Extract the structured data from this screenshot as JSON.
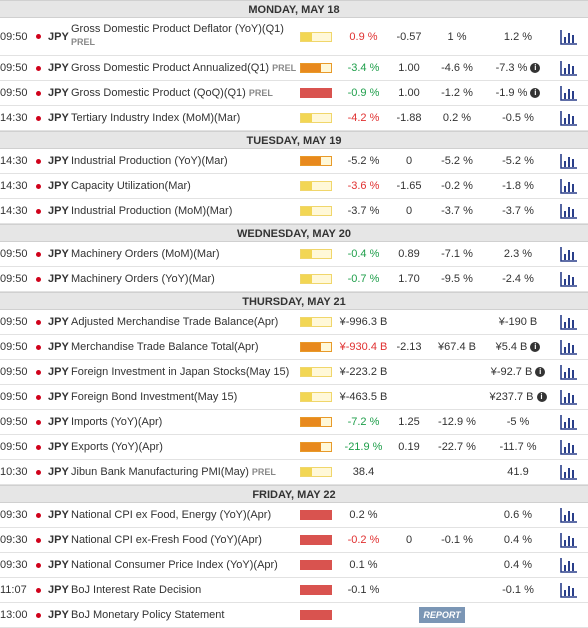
{
  "colors": {
    "impact_low": "#f2d654",
    "impact_medium": "#e8891d",
    "impact_high": "#d9534f",
    "actual_up": "#1e9e4a",
    "actual_down": "#e03030",
    "report_button": "#7b96b5"
  },
  "icons": {
    "flag": "japan-flag-icon",
    "chart": "bar-chart-icon",
    "info": "info-icon"
  },
  "days": [
    {
      "label": "MONDAY, MAY 18",
      "events": [
        {
          "time": "09:50",
          "currency": "JPY",
          "name": "Gross Domestic Product Deflator (YoY)(Q1)",
          "prel": "PREL",
          "two_line": true,
          "impact": "low",
          "actual": "0.9 %",
          "actual_dir": "down",
          "deviation": "-0.57",
          "consensus": "1 %",
          "previous": "1.2 %",
          "previous_info": false
        },
        {
          "time": "09:50",
          "currency": "JPY",
          "name": "Gross Domestic Product Annualized(Q1)",
          "prel": "PREL",
          "impact": "med",
          "actual": "-3.4 %",
          "actual_dir": "up",
          "deviation": "1.00",
          "consensus": "-4.6 %",
          "previous": "-7.3 %",
          "previous_info": true
        },
        {
          "time": "09:50",
          "currency": "JPY",
          "name": "Gross Domestic Product (QoQ)(Q1)",
          "prel": "PREL",
          "impact": "high",
          "actual": "-0.9 %",
          "actual_dir": "up",
          "deviation": "1.00",
          "consensus": "-1.2 %",
          "previous": "-1.9 %",
          "previous_info": true
        },
        {
          "time": "14:30",
          "currency": "JPY",
          "name": "Tertiary Industry Index (MoM)(Mar)",
          "prel": "",
          "impact": "low",
          "actual": "-4.2 %",
          "actual_dir": "down",
          "deviation": "-1.88",
          "consensus": "0.2 %",
          "previous": "-0.5 %",
          "previous_info": false
        }
      ]
    },
    {
      "label": "TUESDAY, MAY 19",
      "events": [
        {
          "time": "14:30",
          "currency": "JPY",
          "name": "Industrial Production (YoY)(Mar)",
          "prel": "",
          "impact": "med",
          "actual": "-5.2 %",
          "actual_dir": "neu",
          "deviation": "0",
          "consensus": "-5.2 %",
          "previous": "-5.2 %",
          "previous_info": false
        },
        {
          "time": "14:30",
          "currency": "JPY",
          "name": "Capacity Utilization(Mar)",
          "prel": "",
          "impact": "low",
          "actual": "-3.6 %",
          "actual_dir": "down",
          "deviation": "-1.65",
          "consensus": "-0.2 %",
          "previous": "-1.8 %",
          "previous_info": false
        },
        {
          "time": "14:30",
          "currency": "JPY",
          "name": "Industrial Production (MoM)(Mar)",
          "prel": "",
          "impact": "low",
          "actual": "-3.7 %",
          "actual_dir": "neu",
          "deviation": "0",
          "consensus": "-3.7 %",
          "previous": "-3.7 %",
          "previous_info": false
        }
      ]
    },
    {
      "label": "WEDNESDAY, MAY 20",
      "events": [
        {
          "time": "09:50",
          "currency": "JPY",
          "name": "Machinery Orders (MoM)(Mar)",
          "prel": "",
          "impact": "low",
          "actual": "-0.4 %",
          "actual_dir": "up",
          "deviation": "0.89",
          "consensus": "-7.1 %",
          "previous": "2.3 %",
          "previous_info": false
        },
        {
          "time": "09:50",
          "currency": "JPY",
          "name": "Machinery Orders (YoY)(Mar)",
          "prel": "",
          "impact": "low",
          "actual": "-0.7 %",
          "actual_dir": "up",
          "deviation": "1.70",
          "consensus": "-9.5 %",
          "previous": "-2.4 %",
          "previous_info": false
        }
      ]
    },
    {
      "label": "THURSDAY, MAY 21",
      "events": [
        {
          "time": "09:50",
          "currency": "JPY",
          "name": "Adjusted Merchandise Trade Balance(Apr)",
          "prel": "",
          "impact": "low",
          "actual": "¥-996.3 B",
          "actual_dir": "neu",
          "deviation": "",
          "consensus": "",
          "previous": "¥-190 B",
          "previous_info": false
        },
        {
          "time": "09:50",
          "currency": "JPY",
          "name": "Merchandise Trade Balance Total(Apr)",
          "prel": "",
          "impact": "med",
          "actual": "¥-930.4 B",
          "actual_dir": "down",
          "deviation": "-2.13",
          "consensus": "¥67.4 B",
          "previous": "¥5.4 B",
          "previous_info": true
        },
        {
          "time": "09:50",
          "currency": "JPY",
          "name": "Foreign Investment in Japan Stocks(May 15)",
          "prel": "",
          "impact": "low",
          "actual": "¥-223.2 B",
          "actual_dir": "neu",
          "deviation": "",
          "consensus": "",
          "previous": "¥-92.7 B",
          "previous_info": true
        },
        {
          "time": "09:50",
          "currency": "JPY",
          "name": "Foreign Bond Investment(May 15)",
          "prel": "",
          "impact": "low",
          "actual": "¥-463.5 B",
          "actual_dir": "neu",
          "deviation": "",
          "consensus": "",
          "previous": "¥237.7 B",
          "previous_info": true
        },
        {
          "time": "09:50",
          "currency": "JPY",
          "name": "Imports (YoY)(Apr)",
          "prel": "",
          "impact": "med",
          "actual": "-7.2 %",
          "actual_dir": "up",
          "deviation": "1.25",
          "consensus": "-12.9 %",
          "previous": "-5 %",
          "previous_info": false
        },
        {
          "time": "09:50",
          "currency": "JPY",
          "name": "Exports (YoY)(Apr)",
          "prel": "",
          "impact": "med",
          "actual": "-21.9 %",
          "actual_dir": "up",
          "deviation": "0.19",
          "consensus": "-22.7 %",
          "previous": "-11.7 %",
          "previous_info": false
        },
        {
          "time": "10:30",
          "currency": "JPY",
          "name": "Jibun Bank Manufacturing PMI(May)",
          "prel": "PREL",
          "impact": "low",
          "actual": "38.4",
          "actual_dir": "neu",
          "deviation": "",
          "consensus": "",
          "previous": "41.9",
          "previous_info": false
        }
      ]
    },
    {
      "label": "FRIDAY, MAY 22",
      "events": [
        {
          "time": "09:30",
          "currency": "JPY",
          "name": "National CPI ex Food, Energy (YoY)(Apr)",
          "prel": "",
          "impact": "high",
          "actual": "0.2 %",
          "actual_dir": "neu",
          "deviation": "",
          "consensus": "",
          "previous": "0.6 %",
          "previous_info": false
        },
        {
          "time": "09:30",
          "currency": "JPY",
          "name": "National CPI ex-Fresh Food (YoY)(Apr)",
          "prel": "",
          "impact": "high",
          "actual": "-0.2 %",
          "actual_dir": "down",
          "deviation": "0",
          "consensus": "-0.1 %",
          "previous": "0.4 %",
          "previous_info": false
        },
        {
          "time": "09:30",
          "currency": "JPY",
          "name": "National Consumer Price Index (YoY)(Apr)",
          "prel": "",
          "impact": "high",
          "actual": "0.1 %",
          "actual_dir": "neu",
          "deviation": "",
          "consensus": "",
          "previous": "0.4 %",
          "previous_info": false
        },
        {
          "time": "11:07",
          "currency": "JPY",
          "name": "BoJ Interest Rate Decision",
          "prel": "",
          "impact": "high",
          "actual": "-0.1 %",
          "actual_dir": "neu",
          "deviation": "",
          "consensus": "",
          "previous": "-0.1 %",
          "previous_info": false
        },
        {
          "time": "13:00",
          "currency": "JPY",
          "name": "BoJ Monetary Policy Statement",
          "prel": "",
          "impact": "high",
          "actual": "",
          "actual_dir": "neu",
          "deviation": "",
          "consensus": "",
          "previous": "",
          "previous_info": false,
          "report": "REPORT"
        }
      ]
    }
  ]
}
